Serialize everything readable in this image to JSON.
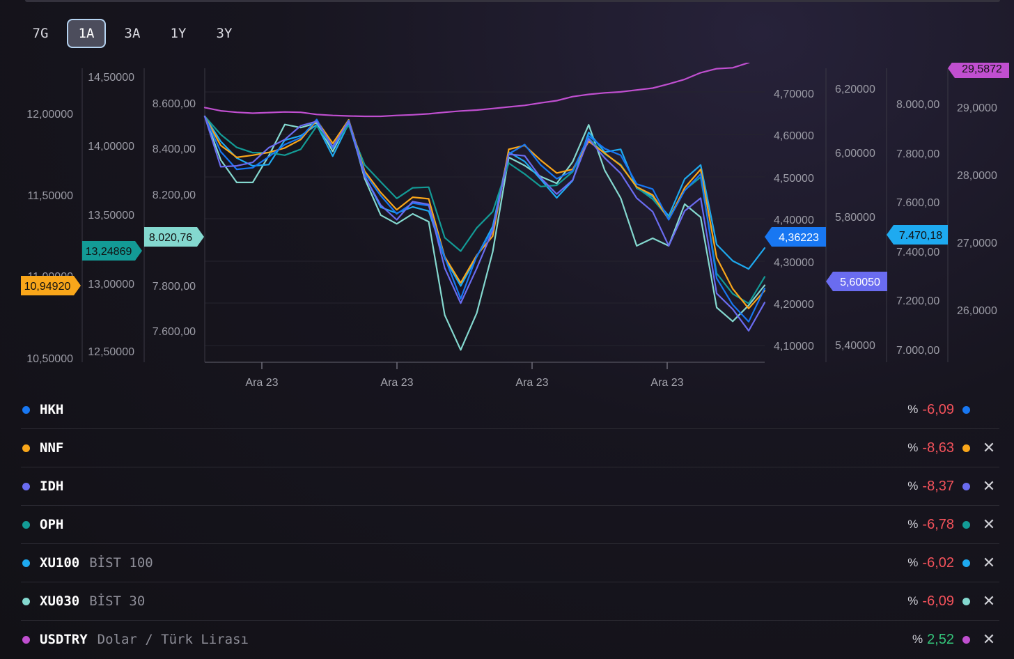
{
  "tabs": [
    "7G",
    "1A",
    "3A",
    "1Y",
    "3Y"
  ],
  "active_tab": "1A",
  "chart_data": {
    "type": "line",
    "x_tick_labels": [
      "Ara 23",
      "Ara 23",
      "Ara 23",
      "Ara 23"
    ],
    "axes": [
      {
        "id": "a1",
        "ticks": [
          "12,00000",
          "11,50000",
          "10,50000"
        ],
        "hidden_tick": "11,00000",
        "marker": {
          "label": "10,94920",
          "color": "#f9a61a"
        }
      },
      {
        "id": "a2",
        "ticks": [
          "14,50000",
          "14,00000",
          "13,50000",
          "13,00000",
          "12,50000"
        ],
        "marker": {
          "label": "13,24869",
          "color": "#139b96"
        }
      },
      {
        "id": "a3",
        "ticks": [
          "8.600,00",
          "8.400,00",
          "8.200,00",
          "7.800,00",
          "7.600,00"
        ],
        "marker": {
          "label": "8.020,76",
          "color": "#84d8cf"
        }
      },
      {
        "id": "a4",
        "ticks": [
          "4,70000",
          "4,60000",
          "4,50000",
          "4,40000",
          "4,30000",
          "4,20000",
          "4,10000"
        ],
        "marker": {
          "label": "4,36223",
          "color": "#1877f2"
        }
      },
      {
        "id": "a5",
        "ticks": [
          "6,20000",
          "6,00000",
          "5,80000",
          "5,40000"
        ],
        "marker": {
          "label": "5,60050",
          "color": "#6a6cf0"
        }
      },
      {
        "id": "a6",
        "ticks": [
          "8.000,00",
          "7.800,00",
          "7.600,00",
          "7.400,00",
          "7.200,00",
          "7.000,00"
        ],
        "marker": {
          "label": "7.470,18",
          "color": "#1eaaf0"
        }
      },
      {
        "id": "a7",
        "ticks": [
          "29,0000",
          "28,0000",
          "27,0000",
          "26,0000"
        ],
        "marker": {
          "label": "29,5872",
          "color": "#c04fd0"
        }
      }
    ],
    "series": [
      {
        "name": "USDTRY",
        "color": "#c04fd0",
        "y": [
          2.8,
          1.75,
          1.3,
          1.0,
          1.2,
          1.4,
          1.3,
          0.6,
          0.3,
          0.1,
          0.0,
          0.0,
          0.3,
          0.5,
          0.8,
          1.3,
          1.7,
          2.0,
          2.5,
          3.0,
          3.5,
          4.3,
          5.0,
          6.3,
          7.0,
          7.5,
          7.8,
          8.4,
          9.0,
          10.3,
          11.8,
          13.9,
          15.2,
          15.5,
          17.1,
          20.6
        ]
      },
      {
        "name": "XU030",
        "color": "#84d8cf",
        "y": [
          0,
          -13.9,
          -21.1,
          -21.1,
          -12.6,
          -2.6,
          -3.6,
          -2.1,
          -11.2,
          -1.2,
          -19.9,
          -31.5,
          -34.3,
          -31.1,
          -33.6,
          -63.4,
          -74.5,
          -62.8,
          -43.2,
          -13.1,
          -15.7,
          -19.2,
          -21.4,
          -14.5,
          -2.7,
          -17.2,
          -26.1,
          -41.3,
          -38.9,
          -41.3,
          -28.0,
          -32.2,
          -61.0,
          -65.4,
          -60.3,
          -53.9
        ]
      },
      {
        "name": "XU100",
        "color": "#1eaaf0",
        "y": [
          0,
          -8.0,
          -13.3,
          -15.8,
          -15.4,
          -7.6,
          -6.2,
          -2.7,
          -12.7,
          -2.3,
          -19.0,
          -29.0,
          -30.9,
          -28.9,
          -30.2,
          -45.3,
          -54.1,
          -44.8,
          -35.1,
          -11.4,
          -14.4,
          -20.1,
          -26.0,
          -20.5,
          -5.1,
          -11.4,
          -10.5,
          -22.9,
          -25.6,
          -31.8,
          -20.0,
          -15.5,
          -40.9,
          -46.1,
          -48.7,
          -42.0
        ]
      },
      {
        "name": "HKH",
        "color": "#1877f2",
        "y": [
          0,
          -11.3,
          -16.9,
          -16.4,
          -12.9,
          -9.0,
          -6.8,
          -1.0,
          -10.2,
          -1.3,
          -18.2,
          -25.3,
          -31.1,
          -27.7,
          -28.5,
          -45.0,
          -58.2,
          -44.6,
          -36.2,
          -12.0,
          -9.0,
          -15.5,
          -19.9,
          -17.4,
          -6.3,
          -10.3,
          -12.4,
          -21.6,
          -23.2,
          -33.0,
          -23.7,
          -18.4,
          -51.7,
          -60.1,
          -65.5,
          -54.9
        ]
      },
      {
        "name": "NNF",
        "color": "#f9a61a",
        "y": [
          0,
          -9.3,
          -13.1,
          -12.4,
          -11.5,
          -10.1,
          -7.4,
          -1.3,
          -8.6,
          -1.1,
          -17.5,
          -24.3,
          -29.8,
          -25.8,
          -26.3,
          -44.8,
          -53.1,
          -44.3,
          -38.2,
          -10.5,
          -9.3,
          -14.0,
          -18.1,
          -16.9,
          -8.0,
          -11.7,
          -15.7,
          -22.5,
          -25.1,
          -32.9,
          -22.8,
          -16.9,
          -45.1,
          -55.0,
          -61.3,
          -55.6
        ]
      },
      {
        "name": "IDH",
        "color": "#6a6cf0",
        "y": [
          0,
          -16.1,
          -15.8,
          -14.7,
          -10.0,
          -7.4,
          -3.0,
          -1.6,
          -9.7,
          -1.6,
          -19.2,
          -28.3,
          -33.0,
          -27.2,
          -28.1,
          -48.4,
          -59.6,
          -48.5,
          -36.4,
          -12.1,
          -12.6,
          -19.6,
          -24.8,
          -20.3,
          -7.2,
          -13.3,
          -18.2,
          -26.1,
          -30.4,
          -41.3,
          -30.2,
          -26.1,
          -56.5,
          -61.5,
          -68.4,
          -59.4
        ]
      },
      {
        "name": "OPH",
        "color": "#139b96",
        "y": [
          0,
          -5.8,
          -9.9,
          -11.6,
          -11.6,
          -12.4,
          -10.5,
          -3.1,
          -9.5,
          -2.9,
          -15.5,
          -20.9,
          -26.2,
          -22.8,
          -22.6,
          -38.7,
          -43.0,
          -35.6,
          -30.4,
          -14.9,
          -18.4,
          -22.4,
          -22.0,
          -17.7,
          -7.0,
          -12.0,
          -15.4,
          -22.7,
          -26.4,
          -32.4,
          -23.5,
          -19.4,
          -50.1,
          -56.6,
          -59.7,
          -51.2
        ]
      }
    ]
  },
  "legend": [
    {
      "symbol": "HKH",
      "description": "",
      "pct_sign": "%",
      "change": "-6,09",
      "color": "#1877f2",
      "sign": "neg",
      "closable": false
    },
    {
      "symbol": "NNF",
      "description": "",
      "pct_sign": "%",
      "change": "-8,63",
      "color": "#f9a61a",
      "sign": "neg",
      "closable": true
    },
    {
      "symbol": "IDH",
      "description": "",
      "pct_sign": "%",
      "change": "-8,37",
      "color": "#6a6cf0",
      "sign": "neg",
      "closable": true
    },
    {
      "symbol": "OPH",
      "description": "",
      "pct_sign": "%",
      "change": "-6,78",
      "color": "#139b96",
      "sign": "neg",
      "closable": true
    },
    {
      "symbol": "XU100",
      "description": "BİST 100",
      "pct_sign": "%",
      "change": "-6,02",
      "color": "#1eaaf0",
      "sign": "neg",
      "closable": true
    },
    {
      "symbol": "XU030",
      "description": "BİST 30",
      "pct_sign": "%",
      "change": "-6,09",
      "color": "#84d8cf",
      "sign": "neg",
      "closable": true
    },
    {
      "symbol": "USDTRY",
      "description": "Dolar / Türk Lirası",
      "pct_sign": "%",
      "change": "2,52",
      "color": "#c04fd0",
      "sign": "pos",
      "closable": true
    }
  ],
  "close_glyph": "✕"
}
